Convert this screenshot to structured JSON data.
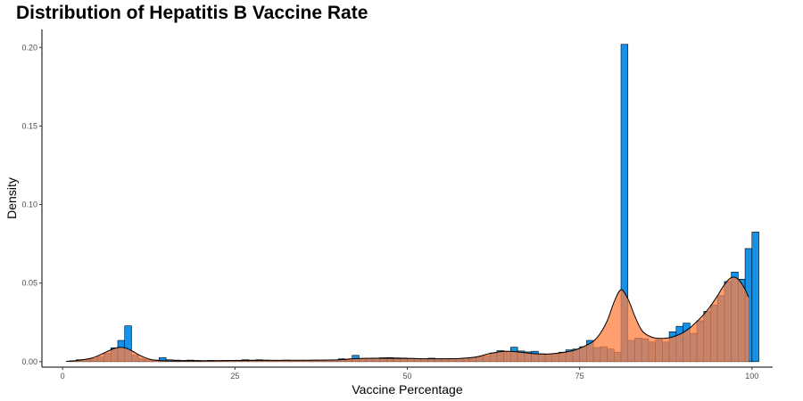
{
  "chart_data": {
    "type": "histogram",
    "title": "Distribution of Hepatitis B Vaccine Rate",
    "xlabel": "Vaccine Percentage",
    "ylabel": "Density",
    "xlim": [
      -3,
      103
    ],
    "ylim": [
      -0.0035,
      0.2115
    ],
    "x_ticks": [
      0,
      25,
      50,
      75,
      100
    ],
    "x_tick_labels": [
      "0",
      "25",
      "50",
      "75",
      "100"
    ],
    "y_ticks": [
      0,
      0.05,
      0.1,
      0.15,
      0.2
    ],
    "y_tick_labels": [
      "0.00",
      "0.05",
      "0.10",
      "0.15",
      "0.20"
    ],
    "grid": false,
    "legend": "none",
    "bin_start": 1,
    "bin_width": 1,
    "bar_fill": "#1691EA",
    "density_fill": "#FF7F3F",
    "density_alpha": 0.75,
    "outline_color": "#000000",
    "histogram_density": [
      0.0005,
      0.0012,
      0.0013,
      0.0018,
      0.0029,
      0.0052,
      0.0088,
      0.0135,
      0.0228,
      0.0042,
      0.0018,
      0.0012,
      0.001,
      0.0025,
      0.0012,
      0.001,
      0.0008,
      0.001,
      0.0008,
      0.0007,
      0.0008,
      0.0007,
      0.0008,
      0.0008,
      0.0009,
      0.0012,
      0.001,
      0.0012,
      0.001,
      0.0009,
      0.0007,
      0.001,
      0.0008,
      0.0009,
      0.0007,
      0.001,
      0.0009,
      0.0011,
      0.0009,
      0.0018,
      0.0012,
      0.004,
      0.0018,
      0.002,
      0.0023,
      0.0025,
      0.0026,
      0.0024,
      0.0023,
      0.0021,
      0.0018,
      0.0018,
      0.0022,
      0.0018,
      0.0018,
      0.002,
      0.0019,
      0.0023,
      0.0025,
      0.003,
      0.0035,
      0.0055,
      0.007,
      0.0063,
      0.0092,
      0.0068,
      0.0062,
      0.0066,
      0.005,
      0.0045,
      0.005,
      0.006,
      0.0075,
      0.008,
      0.0095,
      0.0135,
      0.009,
      0.0095,
      0.008,
      0.006,
      0.202,
      0.0135,
      0.015,
      0.0145,
      0.0125,
      0.014,
      0.0125,
      0.019,
      0.0225,
      0.0245,
      0.018,
      0.026,
      0.032,
      0.036,
      0.042,
      0.051,
      0.057,
      0.0525,
      0.072,
      0.0825
    ],
    "density_curve_x": [
      0.5,
      2,
      4,
      5,
      6,
      7,
      8,
      9,
      10,
      11,
      12,
      13,
      14,
      16,
      20,
      25,
      30,
      35,
      40,
      42,
      45,
      50,
      55,
      58,
      60,
      62,
      64,
      66,
      68,
      70,
      72,
      74,
      75,
      76,
      77,
      78,
      79,
      80,
      81,
      82,
      83,
      84,
      85,
      86,
      87,
      88,
      89,
      90,
      91,
      92,
      93,
      94,
      95,
      96,
      97,
      98,
      99,
      99.5
    ],
    "density_curve_y": [
      0.0002,
      0.0007,
      0.002,
      0.0035,
      0.0055,
      0.0075,
      0.009,
      0.0088,
      0.007,
      0.0045,
      0.0025,
      0.0012,
      0.0007,
      0.0005,
      0.0005,
      0.0007,
      0.0008,
      0.0009,
      0.0012,
      0.0018,
      0.0022,
      0.002,
      0.0018,
      0.0021,
      0.003,
      0.0052,
      0.0066,
      0.0062,
      0.0052,
      0.0048,
      0.0055,
      0.007,
      0.0085,
      0.0105,
      0.013,
      0.018,
      0.026,
      0.038,
      0.0458,
      0.04,
      0.029,
      0.02,
      0.0165,
      0.015,
      0.0148,
      0.0152,
      0.0165,
      0.0185,
      0.0215,
      0.0255,
      0.03,
      0.0355,
      0.042,
      0.049,
      0.0535,
      0.0525,
      0.046,
      0.041
    ]
  }
}
